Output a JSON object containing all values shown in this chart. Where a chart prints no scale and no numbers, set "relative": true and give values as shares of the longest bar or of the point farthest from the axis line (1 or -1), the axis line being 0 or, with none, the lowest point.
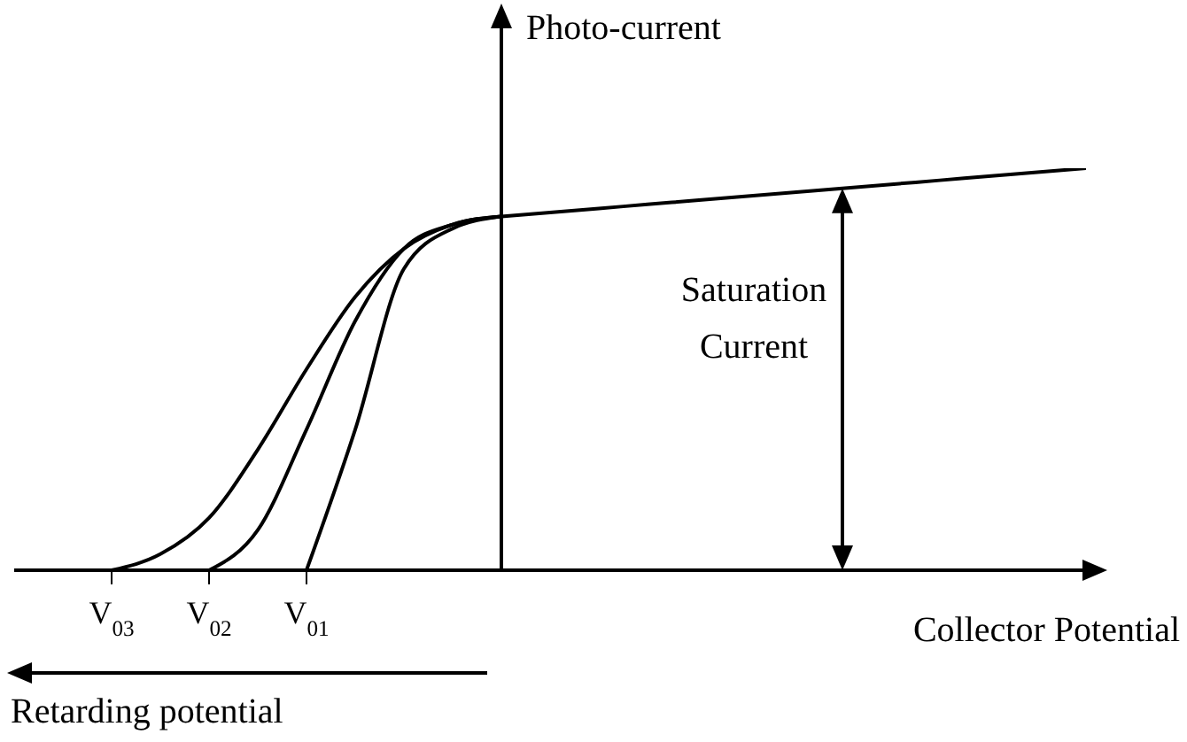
{
  "chart_data": {
    "type": "line",
    "relative": true,
    "xlabel": "Collector Potential",
    "ylabel": "Photo-current",
    "categories": [
      null,
      null,
      "V$_{03}$",
      null,
      "V$_{02}$",
      null,
      "V$_{01}$",
      null,
      null,
      null,
      null,
      null,
      null,
      null,
      null,
      null,
      null,
      null,
      null,
      null,
      null,
      null,
      null
    ],
    "series": [
      {
        "color": "#000000",
        "values": [
          null,
          null,
          0,
          0.04,
          0.13,
          0.3,
          0.5,
          0.68,
          0.8,
          0.86,
          0.88,
          null,
          null,
          null,
          null,
          null,
          null,
          null,
          null,
          null,
          null,
          null,
          null
        ]
      },
      {
        "color": "#000000",
        "values": [
          null,
          null,
          null,
          null,
          0,
          0.1,
          0.35,
          0.62,
          0.8,
          0.86,
          0.88,
          null,
          null,
          null,
          null,
          null,
          null,
          null,
          null,
          null,
          null,
          null,
          null
        ]
      },
      {
        "color": "#000000",
        "values": [
          null,
          null,
          null,
          null,
          null,
          null,
          0,
          0.35,
          0.75,
          0.85,
          0.88,
          null,
          null,
          null,
          null,
          null,
          null,
          null,
          null,
          null,
          null,
          null,
          null
        ]
      },
      {
        "color": "#000000",
        "values": [
          null,
          null,
          null,
          null,
          null,
          null,
          null,
          null,
          null,
          null,
          0.88,
          0.89,
          0.9,
          0.91,
          0.92,
          0.93,
          0.94,
          0.95,
          0.96,
          0.97,
          0.98,
          0.99,
          1.0
        ]
      }
    ],
    "annotations": [
      "Saturation Current",
      "Retarding potential"
    ]
  }
}
